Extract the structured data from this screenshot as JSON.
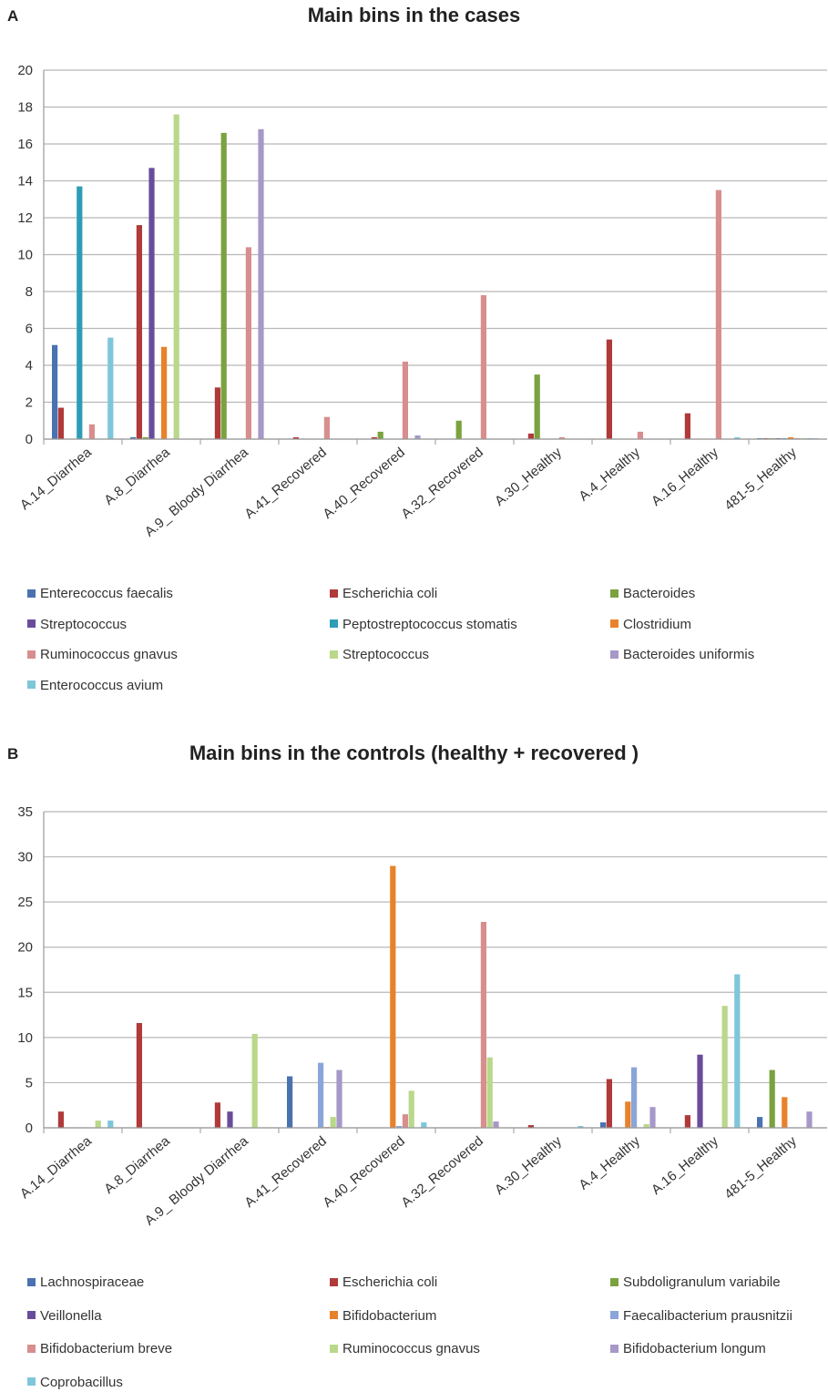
{
  "chart_data": [
    {
      "panel_label": "A",
      "type": "bar",
      "title": "Main bins in the cases",
      "categories": [
        "A.14_Diarrhea",
        "A.8_Diarrhea",
        "A.9_ Bloody Diarrhea",
        "A.41_Recovered",
        "A.40_Recovered",
        "A.32_Recovered",
        "A.30_Healthy",
        "A.4_Healthy",
        "A.16_Healthy",
        "481-5_Healthy"
      ],
      "ylim": [
        0,
        20
      ],
      "yticks": [
        0,
        2,
        4,
        6,
        8,
        10,
        12,
        14,
        16,
        18,
        20
      ],
      "grid": true,
      "legend_position": "bottom",
      "series": [
        {
          "name": "Enterecoccus faecalis",
          "color": "#4a72b0",
          "values": [
            5.1,
            0.1,
            0,
            0,
            0,
            0,
            0,
            0,
            0,
            0.05
          ]
        },
        {
          "name": "Escherichia coli",
          "color": "#b03a3a",
          "values": [
            1.7,
            11.6,
            2.8,
            0.1,
            0.1,
            0,
            0.3,
            5.4,
            1.4,
            0.05
          ]
        },
        {
          "name": "Bacteroides",
          "color": "#7ba23f",
          "values": [
            0,
            0.1,
            16.6,
            0,
            0.4,
            1.0,
            3.5,
            0,
            0,
            0.05
          ]
        },
        {
          "name": "Streptococcus",
          "color": "#6a4c9c",
          "values": [
            0,
            14.7,
            0,
            0,
            0,
            0,
            0,
            0,
            0,
            0.05
          ]
        },
        {
          "name": "Peptostreptococcus stomatis",
          "color": "#2e9cb6",
          "values": [
            13.7,
            0,
            0,
            0,
            0,
            0,
            0,
            0,
            0,
            0.05
          ]
        },
        {
          "name": "Clostridium",
          "color": "#e8822a",
          "values": [
            0,
            5.0,
            0,
            0,
            0,
            0,
            0,
            0,
            0,
            0.1
          ]
        },
        {
          "name": "Ruminococcus gnavus",
          "color": "#d88e8e",
          "values": [
            0.8,
            0,
            10.4,
            1.2,
            4.2,
            7.8,
            0.1,
            0.4,
            13.5,
            0.05
          ]
        },
        {
          "name": "Streptococcus",
          "color": "#b9d88a",
          "values": [
            0,
            17.6,
            0,
            0,
            0,
            0,
            0,
            0,
            0,
            0.05
          ]
        },
        {
          "name": "Bacteroides uniformis",
          "color": "#a698c8",
          "values": [
            0,
            0,
            16.8,
            0,
            0.2,
            0,
            0,
            0,
            0,
            0.05
          ]
        },
        {
          "name": "Enterococcus avium",
          "color": "#7ec6da",
          "values": [
            5.5,
            0,
            0,
            0,
            0,
            0,
            0,
            0,
            0.1,
            0.05
          ]
        }
      ]
    },
    {
      "panel_label": "B",
      "type": "bar",
      "title": "Main bins in the controls (healthy + recovered )",
      "categories": [
        "A.14_Diarrhea",
        "A.8_Diarrhea",
        "A.9_ Bloody Diarrhea",
        "A.41_Recovered",
        "A.40_Recovered",
        "A.32_Recovered",
        "A.30_Healthy",
        "A.4_Healthy",
        "A.16_Healthy",
        "481-5_Healthy"
      ],
      "ylim": [
        0,
        35
      ],
      "yticks": [
        0,
        5,
        10,
        15,
        20,
        25,
        30,
        35
      ],
      "grid": true,
      "legend_position": "bottom",
      "series": [
        {
          "name": "Lachnospiraceae",
          "color": "#4a72b0",
          "values": [
            0,
            0,
            0,
            5.7,
            0,
            0,
            0,
            0.6,
            0,
            1.2
          ]
        },
        {
          "name": "Escherichia coli",
          "color": "#b03a3a",
          "values": [
            1.8,
            11.6,
            2.8,
            0,
            0,
            0,
            0.3,
            5.4,
            1.4,
            0
          ]
        },
        {
          "name": "Subdoligranulum variabile",
          "color": "#7ba23f",
          "values": [
            0,
            0,
            0,
            0,
            0,
            0,
            0,
            0,
            0,
            6.4
          ]
        },
        {
          "name": "Veillonella",
          "color": "#6a4c9c",
          "values": [
            0,
            0,
            1.8,
            0,
            0,
            0,
            0,
            0,
            8.1,
            0
          ]
        },
        {
          "name": "Bifidobacterium",
          "color": "#e8822a",
          "values": [
            0,
            0,
            0,
            0,
            29.0,
            0,
            0,
            2.9,
            0,
            3.4
          ]
        },
        {
          "name": "Faecalibacterium prausnitzii",
          "color": "#8aa6d8",
          "values": [
            0,
            0,
            0,
            7.2,
            0.2,
            0,
            0,
            6.7,
            0,
            0
          ]
        },
        {
          "name": "Bifidobacterium breve",
          "color": "#d88e8e",
          "values": [
            0,
            0,
            0,
            0.1,
            1.5,
            22.8,
            0,
            0,
            0,
            0
          ]
        },
        {
          "name": "Ruminococcus gnavus",
          "color": "#b9d88a",
          "values": [
            0.8,
            0,
            10.4,
            1.2,
            4.1,
            7.8,
            0,
            0.4,
            13.5,
            0
          ]
        },
        {
          "name": "Bifidobacterium longum",
          "color": "#a698c8",
          "values": [
            0,
            0,
            0,
            6.4,
            0,
            0.7,
            0,
            2.3,
            0,
            1.8
          ]
        },
        {
          "name": "Coprobacillus",
          "color": "#7ec6da",
          "values": [
            0.8,
            0,
            0,
            0,
            0.6,
            0,
            0.2,
            0,
            17.0,
            0
          ]
        }
      ]
    }
  ]
}
